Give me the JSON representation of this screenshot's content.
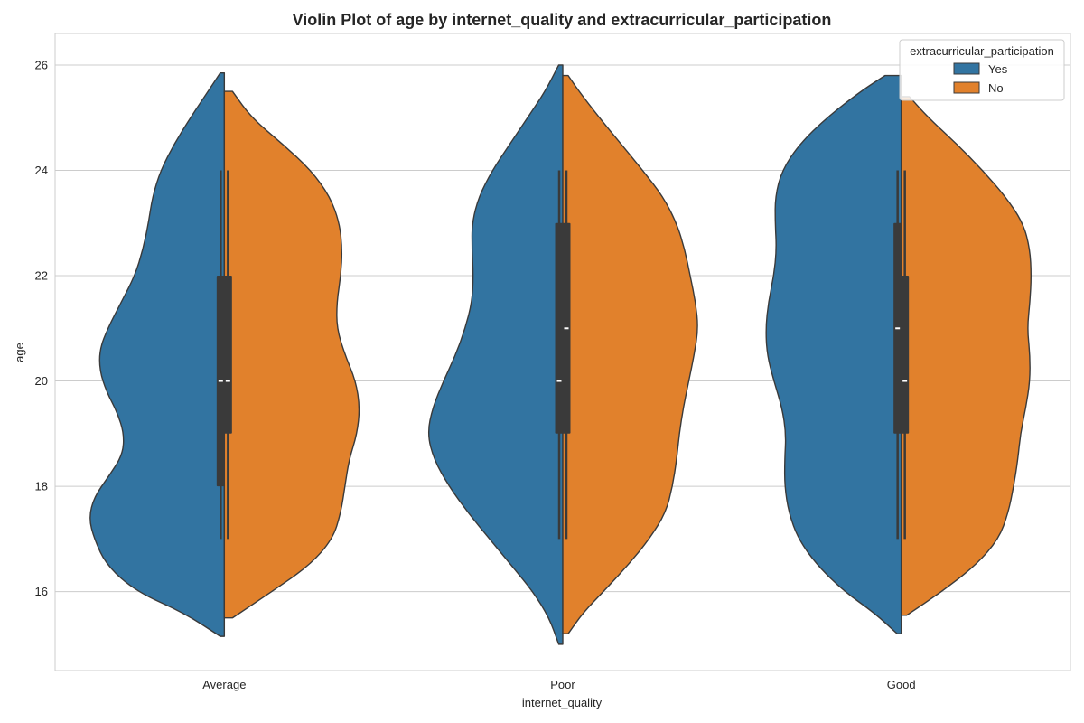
{
  "chart_data": {
    "type": "violin",
    "title": "Violin Plot of age by internet_quality and extracurricular_participation",
    "xlabel": "internet_quality",
    "ylabel": "age",
    "categories": [
      "Average",
      "Poor",
      "Good"
    ],
    "ylim": [
      14.5,
      26.6
    ],
    "yticks": [
      16,
      18,
      20,
      22,
      24,
      26
    ],
    "grid": true,
    "split": true,
    "legend": {
      "title": "extracurricular_participation",
      "placement": "top-right",
      "entries": [
        {
          "label": "Yes",
          "color": "#3274a1"
        },
        {
          "label": "No",
          "color": "#e1812c"
        }
      ]
    },
    "box_color": "#3a3a3a",
    "series": [
      {
        "name": "Yes",
        "color": "#3274a1",
        "side": "left",
        "violins": [
          {
            "category": "Average",
            "ymin": 15.15,
            "ymax": 25.85,
            "density": [
              [
                15.15,
                0.03
              ],
              [
                15.6,
                0.3
              ],
              [
                16.0,
                0.65
              ],
              [
                16.5,
                0.87
              ],
              [
                17.0,
                0.96
              ],
              [
                17.4,
                1.0
              ],
              [
                17.8,
                0.96
              ],
              [
                18.2,
                0.85
              ],
              [
                18.6,
                0.75
              ],
              [
                19.0,
                0.74
              ],
              [
                19.4,
                0.79
              ],
              [
                19.8,
                0.87
              ],
              [
                20.2,
                0.92
              ],
              [
                20.6,
                0.92
              ],
              [
                21.0,
                0.86
              ],
              [
                21.5,
                0.76
              ],
              [
                22.0,
                0.66
              ],
              [
                22.5,
                0.6
              ],
              [
                23.0,
                0.56
              ],
              [
                23.5,
                0.53
              ],
              [
                24.0,
                0.47
              ],
              [
                24.5,
                0.37
              ],
              [
                25.0,
                0.25
              ],
              [
                25.5,
                0.12
              ],
              [
                25.85,
                0.03
              ]
            ],
            "whisker": [
              17,
              24
            ],
            "q1": 18,
            "q3": 22,
            "median": 20
          },
          {
            "category": "Poor",
            "ymin": 15.0,
            "ymax": 26.0,
            "density": [
              [
                15.0,
                0.03
              ],
              [
                15.5,
                0.1
              ],
              [
                16.0,
                0.22
              ],
              [
                16.5,
                0.38
              ],
              [
                17.0,
                0.54
              ],
              [
                17.5,
                0.7
              ],
              [
                18.0,
                0.84
              ],
              [
                18.5,
                0.95
              ],
              [
                19.0,
                1.0
              ],
              [
                19.5,
                0.96
              ],
              [
                20.0,
                0.88
              ],
              [
                20.5,
                0.79
              ],
              [
                21.0,
                0.72
              ],
              [
                21.5,
                0.67
              ],
              [
                22.0,
                0.66
              ],
              [
                22.5,
                0.67
              ],
              [
                23.0,
                0.67
              ],
              [
                23.5,
                0.62
              ],
              [
                24.0,
                0.52
              ],
              [
                24.5,
                0.39
              ],
              [
                25.0,
                0.26
              ],
              [
                25.5,
                0.13
              ],
              [
                26.0,
                0.03
              ]
            ],
            "whisker": [
              17,
              24
            ],
            "q1": 19,
            "q3": 23,
            "median": 20
          },
          {
            "category": "Good",
            "ymin": 15.2,
            "ymax": 25.8,
            "density": [
              [
                15.2,
                0.03
              ],
              [
                15.6,
                0.2
              ],
              [
                16.0,
                0.42
              ],
              [
                16.5,
                0.62
              ],
              [
                17.0,
                0.76
              ],
              [
                17.5,
                0.83
              ],
              [
                18.0,
                0.86
              ],
              [
                18.5,
                0.86
              ],
              [
                19.0,
                0.85
              ],
              [
                19.5,
                0.88
              ],
              [
                20.0,
                0.94
              ],
              [
                20.5,
                0.99
              ],
              [
                21.0,
                1.0
              ],
              [
                21.5,
                0.98
              ],
              [
                22.0,
                0.94
              ],
              [
                22.5,
                0.92
              ],
              [
                23.0,
                0.93
              ],
              [
                23.5,
                0.93
              ],
              [
                24.0,
                0.88
              ],
              [
                24.5,
                0.75
              ],
              [
                25.0,
                0.55
              ],
              [
                25.5,
                0.3
              ],
              [
                25.8,
                0.12
              ]
            ],
            "whisker": [
              17,
              24
            ],
            "q1": 19,
            "q3": 23,
            "median": 21
          }
        ]
      },
      {
        "name": "No",
        "color": "#e1812c",
        "side": "right",
        "violins": [
          {
            "category": "Average",
            "ymin": 15.5,
            "ymax": 25.5,
            "density": [
              [
                15.5,
                0.06
              ],
              [
                16.0,
                0.35
              ],
              [
                16.5,
                0.63
              ],
              [
                17.0,
                0.8
              ],
              [
                17.5,
                0.86
              ],
              [
                18.0,
                0.89
              ],
              [
                18.5,
                0.92
              ],
              [
                19.0,
                0.98
              ],
              [
                19.5,
                1.0
              ],
              [
                20.0,
                0.97
              ],
              [
                20.5,
                0.89
              ],
              [
                21.0,
                0.83
              ],
              [
                21.5,
                0.83
              ],
              [
                22.0,
                0.86
              ],
              [
                22.5,
                0.87
              ],
              [
                23.0,
                0.85
              ],
              [
                23.5,
                0.78
              ],
              [
                24.0,
                0.64
              ],
              [
                24.5,
                0.43
              ],
              [
                25.0,
                0.2
              ],
              [
                25.5,
                0.06
              ]
            ],
            "whisker": [
              17,
              24
            ],
            "q1": 19,
            "q3": 22,
            "median": 20
          },
          {
            "category": "Poor",
            "ymin": 15.2,
            "ymax": 25.8,
            "density": [
              [
                15.2,
                0.04
              ],
              [
                15.6,
                0.15
              ],
              [
                16.0,
                0.3
              ],
              [
                16.5,
                0.48
              ],
              [
                17.0,
                0.64
              ],
              [
                17.5,
                0.76
              ],
              [
                18.0,
                0.81
              ],
              [
                18.5,
                0.84
              ],
              [
                19.0,
                0.86
              ],
              [
                19.5,
                0.89
              ],
              [
                20.0,
                0.93
              ],
              [
                20.5,
                0.97
              ],
              [
                21.0,
                1.0
              ],
              [
                21.5,
                0.98
              ],
              [
                22.0,
                0.94
              ],
              [
                22.5,
                0.9
              ],
              [
                23.0,
                0.84
              ],
              [
                23.5,
                0.74
              ],
              [
                24.0,
                0.59
              ],
              [
                24.5,
                0.43
              ],
              [
                25.0,
                0.27
              ],
              [
                25.5,
                0.12
              ],
              [
                25.8,
                0.04
              ]
            ],
            "whisker": [
              17,
              24
            ],
            "q1": 19,
            "q3": 23,
            "median": 21
          },
          {
            "category": "Good",
            "ymin": 15.55,
            "ymax": 25.4,
            "density": [
              [
                15.55,
                0.04
              ],
              [
                16.0,
                0.3
              ],
              [
                16.5,
                0.55
              ],
              [
                17.0,
                0.72
              ],
              [
                17.5,
                0.79
              ],
              [
                18.0,
                0.83
              ],
              [
                18.5,
                0.86
              ],
              [
                19.0,
                0.88
              ],
              [
                19.5,
                0.92
              ],
              [
                20.0,
                0.95
              ],
              [
                20.5,
                0.95
              ],
              [
                21.0,
                0.93
              ],
              [
                21.5,
                0.95
              ],
              [
                22.0,
                0.96
              ],
              [
                22.5,
                0.95
              ],
              [
                23.0,
                0.9
              ],
              [
                23.5,
                0.77
              ],
              [
                24.0,
                0.6
              ],
              [
                24.5,
                0.41
              ],
              [
                25.0,
                0.2
              ],
              [
                25.4,
                0.06
              ]
            ],
            "whisker": [
              17,
              24
            ],
            "q1": 19,
            "q3": 22,
            "median": 20
          }
        ]
      }
    ]
  }
}
